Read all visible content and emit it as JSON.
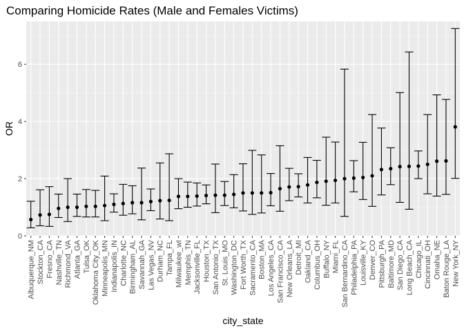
{
  "chart_data": {
    "type": "errorbar-point",
    "title": "Comparing Homicide Rates (Male and Females Victims)",
    "xlabel": "city_state",
    "ylabel": "OR",
    "ylim": [
      0,
      7.5
    ],
    "yticks": [
      0,
      2,
      4,
      6
    ],
    "grid": true,
    "points": [
      {
        "label": "Albuquerque_NM",
        "or": 0.57,
        "lo": 0.28,
        "hi": 1.21
      },
      {
        "label": "Stockton_CA",
        "or": 0.73,
        "lo": 0.35,
        "hi": 1.61
      },
      {
        "label": "Fresno_CA",
        "or": 0.75,
        "lo": 0.33,
        "hi": 1.72
      },
      {
        "label": "Nashville_TN",
        "or": 0.96,
        "lo": 0.64,
        "hi": 1.46
      },
      {
        "label": "Richmond_VA",
        "or": 1.0,
        "lo": 0.5,
        "hi": 2.0
      },
      {
        "label": "Atlanta_GA",
        "or": 1.0,
        "lo": 0.68,
        "hi": 1.46
      },
      {
        "label": "Tulsa_OK",
        "or": 1.03,
        "lo": 0.66,
        "hi": 1.62
      },
      {
        "label": "Oklahoma City_OK",
        "or": 1.03,
        "lo": 0.66,
        "hi": 1.59
      },
      {
        "label": "Minneapolis_MN",
        "or": 1.06,
        "lo": 0.53,
        "hi": 2.09
      },
      {
        "label": "Indianapolis_IN",
        "or": 1.1,
        "lo": 0.83,
        "hi": 1.47
      },
      {
        "label": "Charlotte_NC",
        "or": 1.13,
        "lo": 0.72,
        "hi": 1.8
      },
      {
        "label": "Birmingham_AL",
        "or": 1.16,
        "lo": 0.77,
        "hi": 1.75
      },
      {
        "label": "Savannah_GA",
        "or": 1.16,
        "lo": 0.56,
        "hi": 2.37
      },
      {
        "label": "Las Vegas_NV",
        "or": 1.2,
        "lo": 0.88,
        "hi": 1.64
      },
      {
        "label": "Durham_NC",
        "or": 1.23,
        "lo": 0.59,
        "hi": 2.55
      },
      {
        "label": "Tampa_FL",
        "or": 1.24,
        "lo": 0.53,
        "hi": 2.87
      },
      {
        "label": "Milwaukee_wI",
        "or": 1.38,
        "lo": 0.95,
        "hi": 2.0
      },
      {
        "label": "Memphis_TN",
        "or": 1.38,
        "lo": 1.0,
        "hi": 1.88
      },
      {
        "label": "Jacksonville_FL",
        "or": 1.39,
        "lo": 1.04,
        "hi": 1.85
      },
      {
        "label": "Houston_TX",
        "or": 1.41,
        "lo": 1.12,
        "hi": 1.78
      },
      {
        "label": "San Antonio_TX",
        "or": 1.42,
        "lo": 0.81,
        "hi": 2.51
      },
      {
        "label": "St. Louis_MO",
        "or": 1.42,
        "lo": 1.06,
        "hi": 1.9
      },
      {
        "label": "Washington_DC",
        "or": 1.45,
        "lo": 0.98,
        "hi": 2.14
      },
      {
        "label": "Fort Worth_TX",
        "or": 1.5,
        "lo": 0.87,
        "hi": 2.52
      },
      {
        "label": "Sacramento_CA",
        "or": 1.5,
        "lo": 0.75,
        "hi": 2.99
      },
      {
        "label": "Boston_MA",
        "or": 1.5,
        "lo": 0.8,
        "hi": 2.83
      },
      {
        "label": "Los Angeles_CA",
        "or": 1.51,
        "lo": 1.05,
        "hi": 2.18
      },
      {
        "label": "San Francisco_CA",
        "or": 1.65,
        "lo": 0.86,
        "hi": 3.15
      },
      {
        "label": "New Orleans_LA",
        "or": 1.71,
        "lo": 1.23,
        "hi": 2.36
      },
      {
        "label": "Detroit_MI",
        "or": 1.72,
        "lo": 1.36,
        "hi": 2.17
      },
      {
        "label": "Oakland_CA",
        "or": 1.78,
        "lo": 1.15,
        "hi": 2.74
      },
      {
        "label": "Columbus_OH",
        "or": 1.87,
        "lo": 1.33,
        "hi": 2.64
      },
      {
        "label": "Buffalo_NY",
        "or": 1.91,
        "lo": 1.07,
        "hi": 3.45
      },
      {
        "label": "Miami_FL",
        "or": 1.94,
        "lo": 1.15,
        "hi": 3.28
      },
      {
        "label": "San Bernardino_CA",
        "or": 2.0,
        "lo": 0.68,
        "hi": 5.83
      },
      {
        "label": "Philadelphia_PA",
        "or": 2.02,
        "lo": 1.54,
        "hi": 2.63
      },
      {
        "label": "Louisville_KY",
        "or": 2.04,
        "lo": 1.27,
        "hi": 3.27
      },
      {
        "label": "Denver_CO",
        "or": 2.1,
        "lo": 1.03,
        "hi": 4.24
      },
      {
        "label": "Pittsburgh_PA",
        "or": 2.32,
        "lo": 1.43,
        "hi": 3.77
      },
      {
        "label": "Baltimore_MD",
        "or": 2.35,
        "lo": 1.79,
        "hi": 3.08
      },
      {
        "label": "San Diego_CA",
        "or": 2.42,
        "lo": 1.17,
        "hi": 5.01
      },
      {
        "label": "Long Beach_CA",
        "or": 2.43,
        "lo": 0.93,
        "hi": 6.43
      },
      {
        "label": "Chicago_IL",
        "or": 2.44,
        "lo": 2.0,
        "hi": 2.97
      },
      {
        "label": "Cincinnati_OH",
        "or": 2.5,
        "lo": 1.47,
        "hi": 4.24
      },
      {
        "label": "Omaha_NE",
        "or": 2.61,
        "lo": 1.39,
        "hi": 4.93
      },
      {
        "label": "Baton Rouge_LA",
        "or": 2.62,
        "lo": 1.45,
        "hi": 4.77
      },
      {
        "label": "New York_NY",
        "or": 3.81,
        "lo": 2.01,
        "hi": 7.25
      }
    ]
  }
}
